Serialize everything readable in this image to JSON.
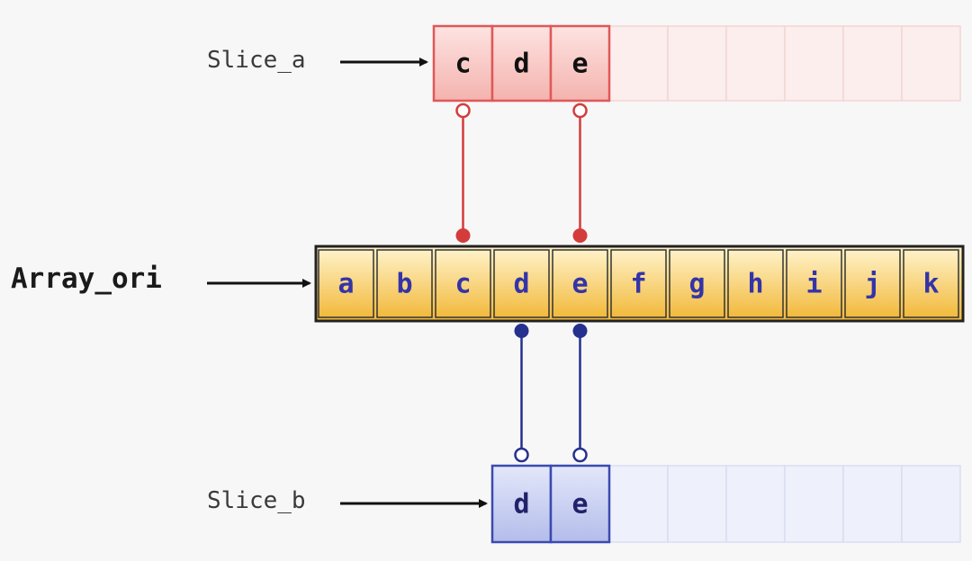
{
  "slice_a": {
    "label": "Slice_a",
    "cells": [
      "c",
      "d",
      "e"
    ],
    "capacity_extra": 6,
    "color": "#e05858",
    "fill": "#f7c9c5",
    "ghost_fill": "#fbeeed"
  },
  "array_ori": {
    "label": "Array_ori",
    "cells": [
      "a",
      "b",
      "c",
      "d",
      "e",
      "f",
      "g",
      "h",
      "i",
      "j",
      "k"
    ],
    "color": "#222222",
    "fill_top": "#fff2c8",
    "fill_bottom": "#f2b93b"
  },
  "slice_b": {
    "label": "Slice_b",
    "cells": [
      "d",
      "e"
    ],
    "capacity_extra": 6,
    "color": "#3b4ab0",
    "fill": "#c6cdf0",
    "ghost_fill": "#eef0fb"
  },
  "links": {
    "slice_a_to_ori": [
      {
        "from": 0,
        "to": 2
      },
      {
        "from": 2,
        "to": 4
      }
    ],
    "ori_to_slice_b": [
      {
        "from": 3,
        "to": 0
      },
      {
        "from": 4,
        "to": 1
      }
    ],
    "red": "#d43c3c",
    "blue": "#25308f"
  }
}
